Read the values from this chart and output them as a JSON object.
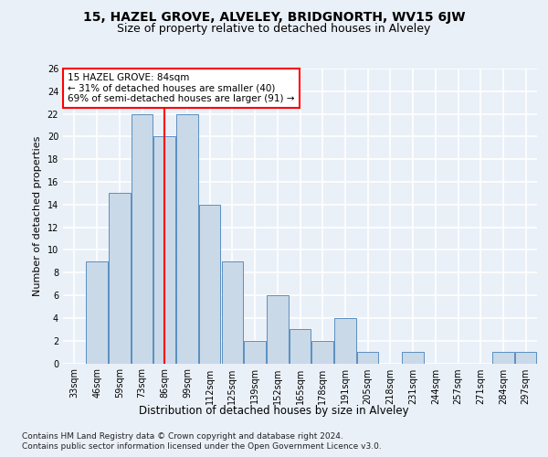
{
  "title1": "15, HAZEL GROVE, ALVELEY, BRIDGNORTH, WV15 6JW",
  "title2": "Size of property relative to detached houses in Alveley",
  "xlabel": "Distribution of detached houses by size in Alveley",
  "ylabel": "Number of detached properties",
  "categories": [
    "33sqm",
    "46sqm",
    "59sqm",
    "73sqm",
    "86sqm",
    "99sqm",
    "112sqm",
    "125sqm",
    "139sqm",
    "152sqm",
    "165sqm",
    "178sqm",
    "191sqm",
    "205sqm",
    "218sqm",
    "231sqm",
    "244sqm",
    "257sqm",
    "271sqm",
    "284sqm",
    "297sqm"
  ],
  "values": [
    0,
    9,
    15,
    22,
    20,
    22,
    14,
    9,
    2,
    6,
    3,
    2,
    4,
    1,
    0,
    1,
    0,
    0,
    0,
    1,
    1
  ],
  "bar_color": "#c9d9e8",
  "bar_edge_color": "#5a8fc0",
  "red_line_index": 4,
  "property_label": "15 HAZEL GROVE: 84sqm",
  "annotation_line1": "← 31% of detached houses are smaller (40)",
  "annotation_line2": "69% of semi-detached houses are larger (91) →",
  "footer1": "Contains HM Land Registry data © Crown copyright and database right 2024.",
  "footer2": "Contains public sector information licensed under the Open Government Licence v3.0.",
  "ylim": [
    0,
    26
  ],
  "yticks": [
    0,
    2,
    4,
    6,
    8,
    10,
    12,
    14,
    16,
    18,
    20,
    22,
    24,
    26
  ],
  "bg_color": "#eaf0f8",
  "plot_bg_color": "#eaf0f8",
  "grid_color": "#ffffff",
  "title1_fontsize": 10,
  "title2_fontsize": 9,
  "xlabel_fontsize": 8.5,
  "ylabel_fontsize": 8,
  "tick_fontsize": 7,
  "footer_fontsize": 6.5,
  "annot_fontsize": 7.5
}
